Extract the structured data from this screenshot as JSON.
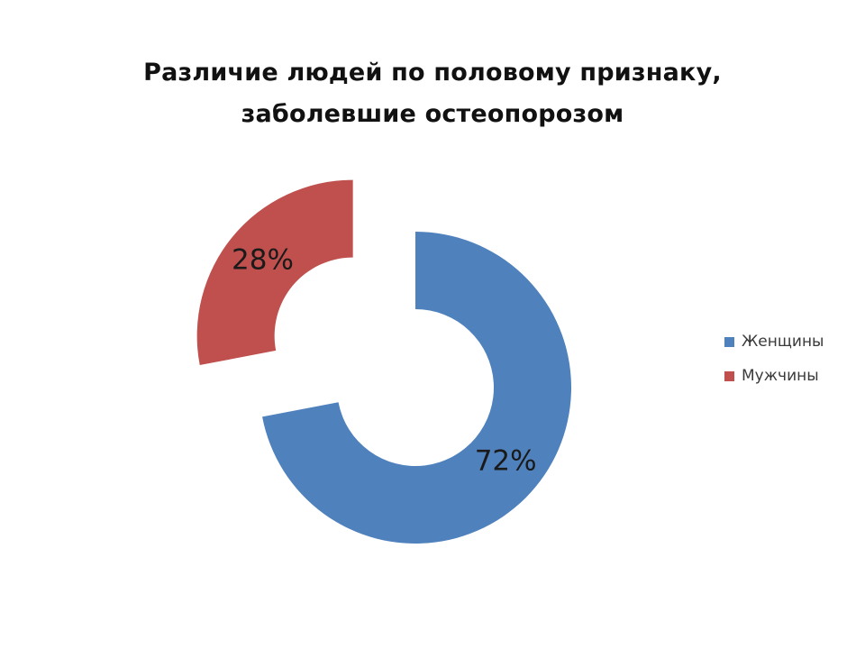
{
  "chart_data": {
    "type": "pie",
    "style": "exploded-doughnut",
    "title": [
      "Различие людей по половому признаку,",
      "заболевшие  остеопорозом"
    ],
    "categories": [
      "Женщины",
      "Мужчины"
    ],
    "values": [
      72,
      28
    ],
    "labels": [
      "72%",
      "28%"
    ],
    "colors": [
      "#4f81bd",
      "#c0504d"
    ],
    "legend": "right"
  }
}
